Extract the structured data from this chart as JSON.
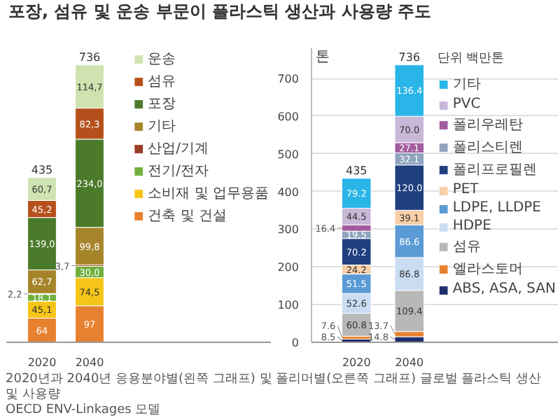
{
  "chart_data": [
    {
      "type": "bar",
      "title": "포장, 섬유 및 운송 부문이 플라스틱 생산과 사용량 주도",
      "annotations": [
        "2020년과 2040년 응용분야별(왼쪽 그래프) 및 폴리머별(오른쪽 그래프) 글로벌 플라스틱 생산 및 사용량",
        "OECD ENV-Linkages 모델"
      ],
      "categories": [
        "2020",
        "2040"
      ],
      "stacked": true,
      "tick_labels": "x",
      "legend": "right",
      "totals": [
        "435",
        "736"
      ],
      "series": [
        {
          "name": "건축 및 건설",
          "color": "#e8812f",
          "values": [
            64,
            97
          ],
          "value_labels": [
            "64",
            "97"
          ]
        },
        {
          "name": "소비재 및 업무용품",
          "color": "#f5c518",
          "values": [
            45.1,
            74.5
          ],
          "value_labels": [
            "45,1",
            "74,5"
          ]
        },
        {
          "name": "전기/전자",
          "color": "#6fb03c",
          "values": [
            18.1,
            30.0
          ],
          "value_labels": [
            "18,1",
            "30,0"
          ]
        },
        {
          "name": "산업/기계",
          "color": "#9a3b22",
          "values": [
            2.2,
            3.7
          ],
          "value_labels": [
            "2,2",
            "3,7"
          ]
        },
        {
          "name": "기타",
          "color": "#a6852a",
          "values": [
            62.7,
            99.8
          ],
          "value_labels": [
            "62,7",
            "99,8"
          ]
        },
        {
          "name": "포장",
          "color": "#4a7a2a",
          "values": [
            139.0,
            234.0
          ],
          "value_labels": [
            "139,0",
            "234,0"
          ]
        },
        {
          "name": "섬유",
          "color": "#b5501c",
          "values": [
            45.2,
            82.3
          ],
          "value_labels": [
            "45,2",
            "82,3"
          ]
        },
        {
          "name": "운송",
          "color": "#cfe3b0",
          "values": [
            60.7,
            114.7
          ],
          "value_labels": [
            "60,7",
            "114,7"
          ]
        }
      ]
    },
    {
      "type": "bar",
      "categories": [
        "2020",
        "2040"
      ],
      "stacked": true,
      "ylim": [
        0,
        780
      ],
      "yticks": [
        0,
        100,
        200,
        300,
        400,
        500,
        600,
        700
      ],
      "ylabel": "톤",
      "grid": "y",
      "legend": "right",
      "legend_title": "단위 백만톤",
      "totals": [
        "435",
        "736"
      ],
      "series": [
        {
          "name": "ABS, ASA, SAN",
          "color": "#1f2f6e",
          "values": [
            8.5,
            14.8
          ],
          "value_labels": [
            "8.5",
            "14.8"
          ]
        },
        {
          "name": "엘라스토머",
          "color": "#e8812f",
          "values": [
            7.6,
            13.7
          ],
          "value_labels": [
            "7.6",
            "13.7"
          ]
        },
        {
          "name": "섬유",
          "color": "#b8b8b8",
          "values": [
            60.8,
            109.4
          ],
          "value_labels": [
            "60.8",
            "109.4"
          ]
        },
        {
          "name": "HDPE",
          "color": "#c9dcf2",
          "values": [
            52.6,
            86.8
          ],
          "value_labels": [
            "52.6",
            "86.8"
          ]
        },
        {
          "name": "LDPE, LLDPE",
          "color": "#5b9bd5",
          "values": [
            51.5,
            86.6
          ],
          "value_labels": [
            "51.5",
            "86.6"
          ]
        },
        {
          "name": "PET",
          "color": "#f8cfa8",
          "values": [
            24.2,
            39.1
          ],
          "value_labels": [
            "24.2",
            "39.1"
          ]
        },
        {
          "name": "폴리프로필렌",
          "color": "#1f3f7f",
          "values": [
            70.2,
            120.0
          ],
          "value_labels": [
            "70.2",
            "120.0"
          ]
        },
        {
          "name": "폴리스티렌",
          "color": "#8fa3bf",
          "values": [
            19.5,
            32.1
          ],
          "value_labels": [
            "19.5",
            "32.1"
          ]
        },
        {
          "name": "폴리우레탄",
          "color": "#a35ca0",
          "values": [
            16.4,
            27.1
          ],
          "value_labels": [
            "16.4",
            "27.1"
          ]
        },
        {
          "name": "PVC",
          "color": "#c8b8d8",
          "values": [
            44.5,
            70.0
          ],
          "value_labels": [
            "44.5",
            "70.0"
          ]
        },
        {
          "name": "기타",
          "color": "#29b5e8",
          "values": [
            79.2,
            136.4
          ],
          "value_labels": [
            "79.2",
            "136.4"
          ]
        }
      ]
    }
  ]
}
